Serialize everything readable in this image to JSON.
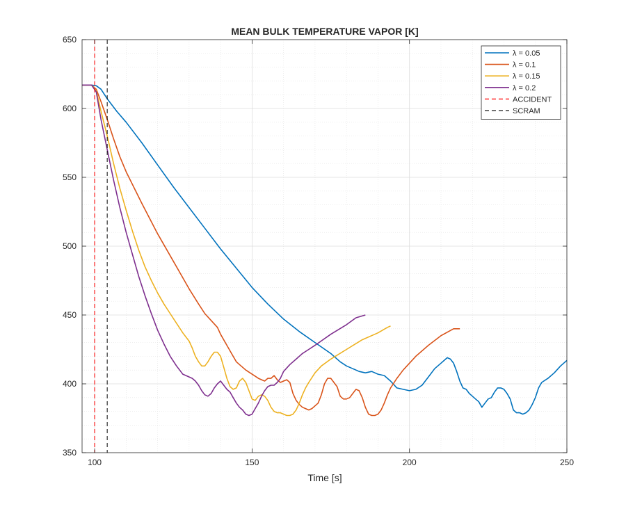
{
  "chart_data": {
    "type": "line",
    "title": "MEAN BULK TEMPERATURE VAPOR [K]",
    "xlabel": "Time [s]",
    "ylabel": "",
    "xlim": [
      96,
      250
    ],
    "ylim": [
      350,
      650
    ],
    "xticks": [
      100,
      150,
      200,
      250
    ],
    "yticks": [
      350,
      400,
      450,
      500,
      550,
      600,
      650
    ],
    "grid": true,
    "minor_grid": true,
    "legend_position": "top-right",
    "series": [
      {
        "name": "λ = 0.05",
        "color": "#0072BD",
        "style": "solid",
        "points": [
          [
            96,
            617
          ],
          [
            99,
            617
          ],
          [
            100.5,
            616.5
          ],
          [
            102,
            614
          ],
          [
            104,
            607
          ],
          [
            107,
            598
          ],
          [
            110,
            590
          ],
          [
            115,
            575
          ],
          [
            120,
            559
          ],
          [
            125,
            543
          ],
          [
            130,
            528
          ],
          [
            135,
            513
          ],
          [
            140,
            498
          ],
          [
            145,
            484
          ],
          [
            150,
            470
          ],
          [
            155,
            458
          ],
          [
            160,
            447
          ],
          [
            165,
            438
          ],
          [
            170,
            430
          ],
          [
            175,
            422
          ],
          [
            178,
            416
          ],
          [
            180,
            413
          ],
          [
            182,
            411
          ],
          [
            184,
            409
          ],
          [
            186,
            408
          ],
          [
            188,
            409
          ],
          [
            190,
            407
          ],
          [
            192,
            406
          ],
          [
            194,
            402
          ],
          [
            196,
            397
          ],
          [
            198,
            396
          ],
          [
            200,
            395
          ],
          [
            202,
            396
          ],
          [
            204,
            399
          ],
          [
            206,
            405
          ],
          [
            208,
            411
          ],
          [
            210,
            415
          ],
          [
            212,
            419
          ],
          [
            213,
            418
          ],
          [
            214,
            415
          ],
          [
            215,
            409
          ],
          [
            216,
            402
          ],
          [
            217,
            397
          ],
          [
            218,
            396
          ],
          [
            219,
            393
          ],
          [
            220,
            391
          ],
          [
            221,
            389
          ],
          [
            222,
            387
          ],
          [
            223,
            383
          ],
          [
            224,
            386
          ],
          [
            225,
            389
          ],
          [
            226,
            390
          ],
          [
            227,
            394
          ],
          [
            228,
            397
          ],
          [
            229,
            397
          ],
          [
            230,
            396
          ],
          [
            231,
            393
          ],
          [
            232,
            389
          ],
          [
            233,
            381
          ],
          [
            234,
            379
          ],
          [
            235,
            379
          ],
          [
            236,
            378
          ],
          [
            237,
            379
          ],
          [
            238,
            381
          ],
          [
            239,
            385
          ],
          [
            240,
            390
          ],
          [
            241,
            397
          ],
          [
            242,
            401
          ],
          [
            244,
            404
          ],
          [
            246,
            408
          ],
          [
            248,
            413
          ],
          [
            250,
            417
          ]
        ]
      },
      {
        "name": "λ = 0.1",
        "color": "#D95319",
        "style": "solid",
        "points": [
          [
            96,
            617
          ],
          [
            99,
            617
          ],
          [
            100.5,
            614
          ],
          [
            102,
            605
          ],
          [
            104,
            592
          ],
          [
            106,
            578
          ],
          [
            108,
            565
          ],
          [
            110,
            554
          ],
          [
            115,
            531
          ],
          [
            120,
            509
          ],
          [
            125,
            489
          ],
          [
            130,
            469
          ],
          [
            133,
            458
          ],
          [
            135,
            451
          ],
          [
            137,
            446
          ],
          [
            139,
            441
          ],
          [
            140,
            436
          ],
          [
            142,
            428
          ],
          [
            143,
            424
          ],
          [
            144,
            420
          ],
          [
            145,
            416
          ],
          [
            146,
            414
          ],
          [
            147,
            412
          ],
          [
            148,
            410
          ],
          [
            150,
            407
          ],
          [
            152,
            404
          ],
          [
            153,
            403
          ],
          [
            154,
            402
          ],
          [
            155,
            404
          ],
          [
            156,
            404
          ],
          [
            157,
            406
          ],
          [
            158,
            403
          ],
          [
            159,
            401
          ],
          [
            160,
            402
          ],
          [
            161,
            403
          ],
          [
            162,
            401
          ],
          [
            163,
            393
          ],
          [
            164,
            388
          ],
          [
            165,
            385
          ],
          [
            166,
            383
          ],
          [
            167,
            382
          ],
          [
            168,
            381
          ],
          [
            169,
            382
          ],
          [
            170,
            384
          ],
          [
            171,
            386
          ],
          [
            172,
            392
          ],
          [
            173,
            400
          ],
          [
            174,
            404
          ],
          [
            175,
            404
          ],
          [
            176,
            401
          ],
          [
            177,
            398
          ],
          [
            178,
            391
          ],
          [
            179,
            389
          ],
          [
            180,
            389
          ],
          [
            181,
            390
          ],
          [
            182,
            393
          ],
          [
            183,
            396
          ],
          [
            184,
            395
          ],
          [
            185,
            390
          ],
          [
            186,
            383
          ],
          [
            187,
            378
          ],
          [
            188,
            377
          ],
          [
            189,
            377
          ],
          [
            190,
            378
          ],
          [
            191,
            381
          ],
          [
            192,
            386
          ],
          [
            193,
            392
          ],
          [
            194,
            397
          ],
          [
            196,
            404
          ],
          [
            198,
            410
          ],
          [
            200,
            415
          ],
          [
            202,
            420
          ],
          [
            206,
            428
          ],
          [
            210,
            435
          ],
          [
            214,
            440
          ],
          [
            216,
            440
          ]
        ]
      },
      {
        "name": "λ = 0.15",
        "color": "#EDB120",
        "style": "solid",
        "points": [
          [
            96,
            617
          ],
          [
            99,
            617
          ],
          [
            100.5,
            613
          ],
          [
            102,
            598
          ],
          [
            104,
            580
          ],
          [
            106,
            560
          ],
          [
            108,
            542
          ],
          [
            110,
            526
          ],
          [
            112,
            511
          ],
          [
            114,
            497
          ],
          [
            116,
            485
          ],
          [
            118,
            475
          ],
          [
            120,
            466
          ],
          [
            122,
            458
          ],
          [
            124,
            451
          ],
          [
            126,
            444
          ],
          [
            128,
            437
          ],
          [
            130,
            431
          ],
          [
            131,
            426
          ],
          [
            132,
            420
          ],
          [
            133,
            416
          ],
          [
            134,
            413
          ],
          [
            135,
            413
          ],
          [
            136,
            416
          ],
          [
            137,
            420
          ],
          [
            138,
            423
          ],
          [
            139,
            423
          ],
          [
            140,
            420
          ],
          [
            141,
            412
          ],
          [
            142,
            404
          ],
          [
            143,
            398
          ],
          [
            144,
            396
          ],
          [
            145,
            397
          ],
          [
            146,
            402
          ],
          [
            147,
            404
          ],
          [
            148,
            401
          ],
          [
            149,
            395
          ],
          [
            150,
            389
          ],
          [
            151,
            388
          ],
          [
            152,
            391
          ],
          [
            153,
            392
          ],
          [
            154,
            391
          ],
          [
            155,
            388
          ],
          [
            156,
            383
          ],
          [
            157,
            380
          ],
          [
            158,
            379
          ],
          [
            159,
            379
          ],
          [
            160,
            378
          ],
          [
            161,
            377
          ],
          [
            162,
            377
          ],
          [
            163,
            378
          ],
          [
            164,
            381
          ],
          [
            165,
            386
          ],
          [
            166,
            392
          ],
          [
            167,
            397
          ],
          [
            168,
            401
          ],
          [
            170,
            408
          ],
          [
            172,
            413
          ],
          [
            175,
            418
          ],
          [
            180,
            425
          ],
          [
            185,
            432
          ],
          [
            190,
            437
          ],
          [
            193,
            441
          ],
          [
            194,
            442
          ]
        ]
      },
      {
        "name": "λ = 0.2",
        "color": "#7E2F8E",
        "style": "solid",
        "points": [
          [
            96,
            617
          ],
          [
            99,
            617
          ],
          [
            100.5,
            612
          ],
          [
            102,
            592
          ],
          [
            104,
            570
          ],
          [
            106,
            548
          ],
          [
            108,
            528
          ],
          [
            110,
            510
          ],
          [
            112,
            494
          ],
          [
            114,
            478
          ],
          [
            116,
            464
          ],
          [
            118,
            451
          ],
          [
            120,
            439
          ],
          [
            122,
            429
          ],
          [
            124,
            420
          ],
          [
            126,
            413
          ],
          [
            127,
            410
          ],
          [
            128,
            407
          ],
          [
            129,
            406
          ],
          [
            130,
            405
          ],
          [
            131,
            404
          ],
          [
            132,
            402
          ],
          [
            133,
            399
          ],
          [
            134,
            395
          ],
          [
            135,
            392
          ],
          [
            136,
            391
          ],
          [
            137,
            393
          ],
          [
            138,
            397
          ],
          [
            139,
            400
          ],
          [
            140,
            402
          ],
          [
            141,
            399
          ],
          [
            142,
            396
          ],
          [
            143,
            394
          ],
          [
            144,
            390
          ],
          [
            145,
            386
          ],
          [
            146,
            383
          ],
          [
            147,
            381
          ],
          [
            148,
            378
          ],
          [
            149,
            377
          ],
          [
            150,
            378
          ],
          [
            151,
            382
          ],
          [
            152,
            386
          ],
          [
            153,
            391
          ],
          [
            154,
            395
          ],
          [
            155,
            398
          ],
          [
            156,
            399
          ],
          [
            157,
            399
          ],
          [
            158,
            401
          ],
          [
            159,
            404
          ],
          [
            160,
            409
          ],
          [
            162,
            414
          ],
          [
            164,
            418
          ],
          [
            166,
            422
          ],
          [
            168,
            425
          ],
          [
            170,
            428
          ],
          [
            175,
            436
          ],
          [
            180,
            443
          ],
          [
            183,
            448
          ],
          [
            186,
            450
          ]
        ]
      },
      {
        "name": "ACCIDENT",
        "color": "#FF0000",
        "style": "dashed",
        "x": 100
      },
      {
        "name": "SCRAM",
        "color": "#000000",
        "style": "dashed",
        "x": 104
      }
    ]
  }
}
